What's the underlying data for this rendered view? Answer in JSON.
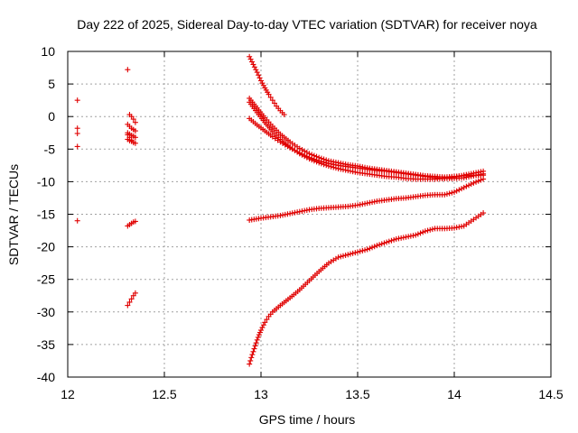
{
  "chart_data": {
    "type": "scatter",
    "title": "Day 222 of 2025, Sidereal Day-to-day VTEC variation (SDTVAR) for receiver noya",
    "xlabel": "GPS time / hours",
    "ylabel": "SDTVAR / TECUs",
    "xlim": [
      12,
      14.5
    ],
    "ylim": [
      -40,
      10
    ],
    "xticks": [
      12,
      12.5,
      13,
      13.5,
      14,
      14.5
    ],
    "xtick_labels": [
      "12",
      "12.5",
      "13",
      "13.5",
      "14",
      "14.5"
    ],
    "yticks": [
      10,
      5,
      0,
      -5,
      -10,
      -15,
      -20,
      -25,
      -30,
      -35,
      -40
    ],
    "ytick_labels": [
      "10",
      "5",
      "0",
      "-5",
      "-10",
      "-15",
      "-20",
      "-25",
      "-30",
      "-35",
      "-40"
    ],
    "grid": true,
    "marker": "+",
    "color": "#e00000",
    "series": [
      {
        "name": "isolated-12.05",
        "x": [
          12.05,
          12.05,
          12.05,
          12.05,
          12.05
        ],
        "y": [
          2.5,
          -1.8,
          -2.6,
          -4.6,
          -16.0
        ]
      },
      {
        "name": "cluster-12.3-upper",
        "x": [
          12.31,
          12.32,
          12.33,
          12.34,
          12.35,
          12.31,
          12.32,
          12.33,
          12.34,
          12.35,
          12.31,
          12.32,
          12.33,
          12.34,
          12.35,
          12.31,
          12.32,
          12.33,
          12.34,
          12.35,
          12.31,
          12.32,
          12.33
        ],
        "y": [
          7.2,
          0.3,
          0.0,
          -0.4,
          -0.9,
          -1.2,
          -1.5,
          -1.8,
          -2.0,
          -2.2,
          -2.5,
          -2.7,
          -2.9,
          -3.0,
          -3.2,
          -3.5,
          -3.7,
          -3.8,
          -4.0,
          -4.1,
          -2.8,
          -3.2,
          -3.6
        ]
      },
      {
        "name": "cluster-12.3-mid",
        "x": [
          12.31,
          12.32,
          12.33,
          12.34,
          12.35
        ],
        "y": [
          -16.8,
          -16.6,
          -16.4,
          -16.2,
          -16.1
        ]
      },
      {
        "name": "cluster-12.3-low",
        "x": [
          12.31,
          12.32,
          12.33,
          12.34,
          12.35
        ],
        "y": [
          -29.0,
          -28.5,
          -28.0,
          -27.5,
          -27.1
        ]
      },
      {
        "name": "arc-a",
        "x": [
          12.94,
          12.96,
          12.98,
          13.0,
          13.02,
          13.04,
          13.06,
          13.08,
          13.1,
          13.12
        ],
        "y": [
          9.2,
          8.0,
          6.8,
          5.5,
          4.4,
          3.4,
          2.5,
          1.6,
          0.9,
          0.3
        ]
      },
      {
        "name": "arc-b",
        "x": [
          12.94,
          12.98,
          13.02,
          13.06,
          13.1,
          13.15,
          13.2,
          13.25,
          13.3,
          13.35,
          13.4,
          13.45,
          13.5,
          13.55,
          13.6,
          13.65,
          13.7,
          13.75,
          13.8,
          13.85,
          13.9,
          13.95,
          14.0,
          14.05,
          14.1,
          14.15
        ],
        "y": [
          2.8,
          1.3,
          -0.2,
          -1.5,
          -2.7,
          -3.9,
          -4.9,
          -5.7,
          -6.3,
          -6.8,
          -7.1,
          -7.4,
          -7.6,
          -7.9,
          -8.1,
          -8.3,
          -8.5,
          -8.7,
          -8.9,
          -9.1,
          -9.2,
          -9.3,
          -9.2,
          -9.1,
          -9.0,
          -9.0
        ]
      },
      {
        "name": "arc-c",
        "x": [
          12.94,
          12.98,
          13.02,
          13.06,
          13.1,
          13.15,
          13.2,
          13.25,
          13.3,
          13.35,
          13.4,
          13.45,
          13.5,
          13.55,
          13.6,
          13.65,
          13.7,
          13.75,
          13.8,
          13.85,
          13.9,
          13.95,
          14.0,
          14.05,
          14.1,
          14.15
        ],
        "y": [
          -0.3,
          -1.3,
          -2.2,
          -3.1,
          -3.9,
          -4.8,
          -5.6,
          -6.3,
          -6.8,
          -7.2,
          -7.5,
          -7.7,
          -7.9,
          -8.1,
          -8.3,
          -8.4,
          -8.6,
          -8.8,
          -9.0,
          -9.2,
          -9.4,
          -9.5,
          -9.5,
          -9.4,
          -9.1,
          -8.8
        ]
      },
      {
        "name": "arc-d",
        "x": [
          12.94,
          12.98,
          13.02,
          13.06,
          13.1,
          13.15,
          13.2,
          13.25,
          13.3,
          13.35,
          13.4,
          13.45,
          13.5,
          13.55,
          13.6,
          13.65,
          13.7,
          13.75,
          13.8,
          13.85,
          13.9,
          13.95,
          14.0,
          14.05,
          14.1,
          14.15
        ],
        "y": [
          2.2,
          0.6,
          -0.9,
          -2.3,
          -3.5,
          -4.7,
          -5.7,
          -6.5,
          -7.1,
          -7.6,
          -8.0,
          -8.3,
          -8.6,
          -8.8,
          -9.0,
          -9.2,
          -9.3,
          -9.5,
          -9.6,
          -9.6,
          -9.6,
          -9.5,
          -9.3,
          -9.0,
          -8.7,
          -8.4
        ]
      },
      {
        "name": "arc-e",
        "x": [
          12.94,
          13.0,
          13.05,
          13.1,
          13.15,
          13.2,
          13.25,
          13.3,
          13.35,
          13.4,
          13.45,
          13.5,
          13.55,
          13.6,
          13.65,
          13.7,
          13.75,
          13.8,
          13.85,
          13.9,
          13.95,
          14.0,
          14.05,
          14.1,
          14.15
        ],
        "y": [
          -15.9,
          -15.6,
          -15.4,
          -15.2,
          -14.9,
          -14.6,
          -14.3,
          -14.1,
          -14.0,
          -13.9,
          -13.8,
          -13.6,
          -13.3,
          -13.0,
          -12.8,
          -12.6,
          -12.5,
          -12.3,
          -12.1,
          -12.0,
          -12.0,
          -11.6,
          -10.9,
          -10.2,
          -9.6
        ]
      },
      {
        "name": "arc-f",
        "x": [
          12.94,
          12.95,
          12.96,
          12.97,
          12.98,
          12.99,
          13.0,
          13.02,
          13.04,
          13.06,
          13.08,
          13.1,
          13.13,
          13.16,
          13.2,
          13.25,
          13.3,
          13.35,
          13.4,
          13.45,
          13.5,
          13.55,
          13.6,
          13.65,
          13.7,
          13.75,
          13.8,
          13.85,
          13.9,
          13.95,
          14.0,
          14.05,
          14.1,
          14.15
        ],
        "y": [
          -38.0,
          -37.0,
          -36.1,
          -35.2,
          -34.3,
          -33.5,
          -32.8,
          -31.6,
          -30.7,
          -30.0,
          -29.5,
          -29.0,
          -28.3,
          -27.6,
          -26.6,
          -25.2,
          -23.8,
          -22.5,
          -21.6,
          -21.2,
          -20.8,
          -20.4,
          -19.8,
          -19.3,
          -18.8,
          -18.5,
          -18.2,
          -17.6,
          -17.2,
          -17.2,
          -17.1,
          -16.8,
          -15.8,
          -14.8
        ]
      }
    ]
  }
}
